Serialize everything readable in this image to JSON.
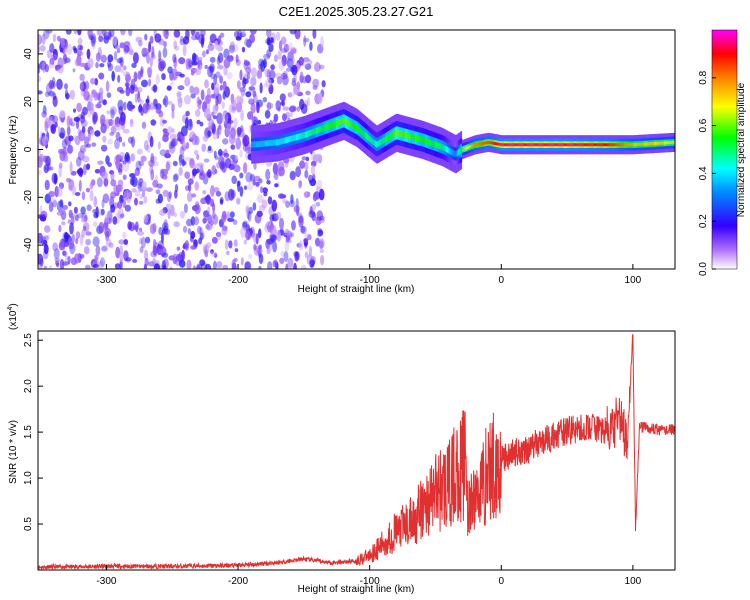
{
  "figure_title": "C2E1.2025.305.23.27.G21",
  "chart_data": [
    {
      "type": "heatmap",
      "title": "",
      "xlabel": "Height of straight line (km)",
      "ylabel": "Frequency (Hz)",
      "xlim": [
        -352,
        132
      ],
      "ylim": [
        -50,
        50
      ],
      "xticks": [
        -300,
        -200,
        -100,
        0,
        100
      ],
      "xtick_labels": [
        "-300",
        "-200",
        "-100",
        "0",
        "100"
      ],
      "yticks": [
        -40,
        -20,
        0,
        20,
        40
      ],
      "ytick_labels": [
        "-40",
        "-20",
        "0",
        "20",
        "40"
      ],
      "colorbar": {
        "label": "Normalized spectral amplitude",
        "range": [
          0,
          1
        ],
        "ticks": [
          0.0,
          0.2,
          0.4,
          0.6,
          0.8
        ],
        "tick_labels": [
          "0.0",
          "0.2",
          "0.4",
          "0.6",
          "0.8"
        ],
        "colormap": [
          "#ffffff",
          "#8a2be2",
          "#3300ff",
          "#00ffff",
          "#00ff00",
          "#ffff00",
          "#ff8000",
          "#ff0000",
          "#ff00ff"
        ]
      },
      "ridge": {
        "x": [
          -190,
          -170,
          -150,
          -130,
          -120,
          -110,
          -95,
          -80,
          -60,
          -45,
          -35,
          -30,
          -20,
          -10,
          0,
          20,
          50,
          80,
          100,
          132
        ],
        "freq": [
          2,
          3,
          6,
          10,
          12,
          9,
          2,
          7,
          4,
          1,
          -2,
          0,
          2,
          3,
          2,
          2,
          2,
          2,
          2,
          3
        ],
        "amplitude": [
          0.35,
          0.4,
          0.45,
          0.55,
          0.6,
          0.55,
          0.45,
          0.6,
          0.55,
          0.5,
          0.3,
          0.6,
          0.8,
          0.85,
          0.95,
          0.95,
          0.95,
          0.9,
          0.75,
          0.7
        ]
      },
      "noise_region": {
        "x_from": -352,
        "x_to": -135,
        "amplitude": 0.2
      }
    },
    {
      "type": "line",
      "title": "",
      "xlabel": "Height of straight line (km)",
      "ylabel": "SNR (10 * v/v)",
      "scale_note": "(x10",
      "scale_exp": "4",
      "scale_close": ")",
      "xlim": [
        -352,
        132
      ],
      "ylim": [
        0,
        26000
      ],
      "xticks": [
        -300,
        -200,
        -100,
        0,
        100
      ],
      "xtick_labels": [
        "-300",
        "-200",
        "-100",
        "0",
        "100"
      ],
      "yticks": [
        5000,
        10000,
        15000,
        20000,
        25000
      ],
      "ytick_labels": [
        "0.5",
        "1.0",
        "1.5",
        "2.0",
        "2.5"
      ],
      "series_color": "#e03030",
      "x": [
        -352,
        -300,
        -250,
        -200,
        -170,
        -150,
        -130,
        -110,
        -100,
        -90,
        -80,
        -70,
        -60,
        -50,
        -45,
        -40,
        -35,
        -30,
        -27,
        -25,
        -20,
        -10,
        0,
        10,
        20,
        30,
        40,
        50,
        60,
        70,
        80,
        85,
        90,
        95,
        98,
        100,
        102,
        105,
        110,
        120,
        132
      ],
      "values": [
        300,
        400,
        400,
        500,
        800,
        1200,
        800,
        1000,
        1600,
        2800,
        4200,
        5000,
        6500,
        8500,
        9000,
        9000,
        10500,
        11000,
        13000,
        6000,
        8000,
        10800,
        12000,
        12800,
        13200,
        14000,
        14500,
        15200,
        15300,
        15600,
        15000,
        15300,
        16800,
        14000,
        20000,
        26000,
        4500,
        15500,
        15500,
        15200,
        15300
      ]
    }
  ]
}
